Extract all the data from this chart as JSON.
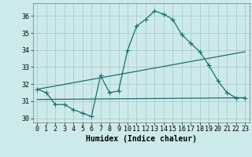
{
  "title": "",
  "xlabel": "Humidex (Indice chaleur)",
  "bg_color": "#cdeaea",
  "grid_color": "#aacccc",
  "line_color": "#1a6e6e",
  "xlim": [
    -0.5,
    23.5
  ],
  "ylim": [
    29.75,
    36.75
  ],
  "xticks": [
    0,
    1,
    2,
    3,
    4,
    5,
    6,
    7,
    8,
    9,
    10,
    11,
    12,
    13,
    14,
    15,
    16,
    17,
    18,
    19,
    20,
    21,
    22,
    23
  ],
  "yticks": [
    30,
    31,
    32,
    33,
    34,
    35,
    36
  ],
  "line1_x": [
    0,
    1,
    2,
    3,
    4,
    5,
    6,
    7,
    8,
    9,
    10,
    11,
    12,
    13,
    14,
    15,
    16,
    17,
    18,
    19,
    20,
    21,
    22,
    23
  ],
  "line1_y": [
    31.7,
    31.5,
    30.8,
    30.8,
    30.5,
    30.3,
    30.1,
    32.5,
    31.5,
    31.6,
    34.0,
    35.4,
    35.8,
    36.3,
    36.1,
    35.8,
    34.9,
    34.4,
    33.9,
    33.1,
    32.2,
    31.5,
    31.2,
    31.2
  ],
  "line2_x": [
    0,
    23
  ],
  "line2_y": [
    31.7,
    33.9
  ],
  "line3_x": [
    0,
    23
  ],
  "line3_y": [
    31.1,
    31.2
  ],
  "marker": "+",
  "linewidth": 0.9,
  "xlabel_fontsize": 7,
  "tick_fontsize": 6
}
